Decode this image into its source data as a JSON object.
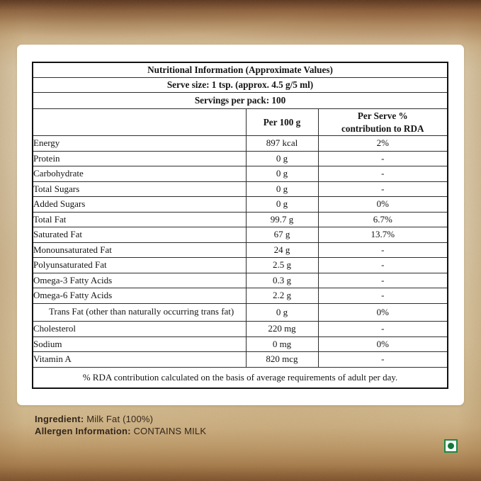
{
  "table": {
    "title": "Nutritional Information (Approximate Values)",
    "serve_size": "Serve size: 1 tsp. (approx. 4.5 g/5 ml)",
    "servings_per_pack": "Servings per pack: 100",
    "columns": {
      "per_100g": "Per 100 g",
      "per_serve": "Per Serve %\ncontribution to RDA"
    },
    "rows": [
      {
        "name": "Energy",
        "indent": 0,
        "per_100g": "897 kcal",
        "per_serve_rda": "2%"
      },
      {
        "name": "Protein",
        "indent": 0,
        "per_100g": "0 g",
        "per_serve_rda": "-"
      },
      {
        "name": "Carbohydrate",
        "indent": 0,
        "per_100g": "0 g",
        "per_serve_rda": "-"
      },
      {
        "name": "Total Sugars",
        "indent": 1,
        "per_100g": "0 g",
        "per_serve_rda": "-"
      },
      {
        "name": "Added Sugars",
        "indent": 2,
        "per_100g": "0 g",
        "per_serve_rda": "0%"
      },
      {
        "name": "Total Fat",
        "indent": 0,
        "per_100g": "99.7 g",
        "per_serve_rda": "6.7%"
      },
      {
        "name": "Saturated Fat",
        "indent": 1,
        "per_100g": "67 g",
        "per_serve_rda": "13.7%"
      },
      {
        "name": "Monounsaturated Fat",
        "indent": 1,
        "per_100g": "24 g",
        "per_serve_rda": "-"
      },
      {
        "name": "Polyunsaturated Fat",
        "indent": 1,
        "per_100g": "2.5 g",
        "per_serve_rda": "-"
      },
      {
        "name": "Omega-3 Fatty Acids",
        "indent": 2,
        "per_100g": "0.3 g",
        "per_serve_rda": "-"
      },
      {
        "name": "Omega-6 Fatty Acids",
        "indent": 2,
        "per_100g": "2.2 g",
        "per_serve_rda": "-"
      },
      {
        "name": "Trans Fat (other than naturally occurring trans fat)",
        "indent": 0,
        "wrap": true,
        "per_100g": "0 g",
        "per_serve_rda": "0%"
      },
      {
        "name": "Cholesterol",
        "indent": 0,
        "per_100g": "220 mg",
        "per_serve_rda": "-"
      },
      {
        "name": "Sodium",
        "indent": 0,
        "per_100g": "0 mg",
        "per_serve_rda": "0%"
      },
      {
        "name": "Vitamin A",
        "indent": 0,
        "per_100g": "820 mcg",
        "per_serve_rda": "-"
      }
    ],
    "footnote": "% RDA contribution calculated on the basis of average requirements of adult per day."
  },
  "info": {
    "ingredient_label": "Ingredient:",
    "ingredient_value": "Milk Fat (100%)",
    "allergen_label": "Allergen Information:",
    "allergen_value": "CONTAINS MILK"
  },
  "veg_mark": {
    "meaning": "vegetarian",
    "color": "#178A43"
  }
}
